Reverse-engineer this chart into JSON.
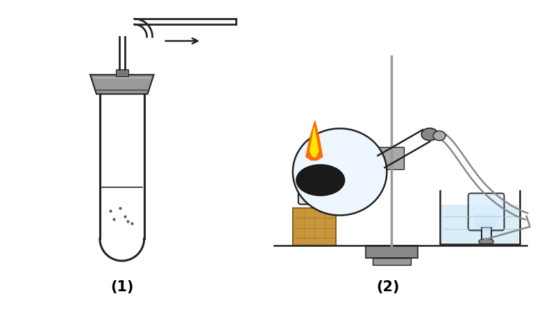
{
  "bg_color": "#ffffff",
  "label1": "(1)",
  "label2": "(2)",
  "label_fontsize": 15,
  "label_fontweight": "bold",
  "gray_dark": "#222222",
  "gray_med": "#888888",
  "gray_light": "#cccccc",
  "wood_color": "#c8963c",
  "wood_dark": "#8b6020",
  "water_color": "#cce8f4",
  "flask_color": "#eef6ff",
  "flame_orange": "#ff6600",
  "flame_yellow": "#ffee00"
}
